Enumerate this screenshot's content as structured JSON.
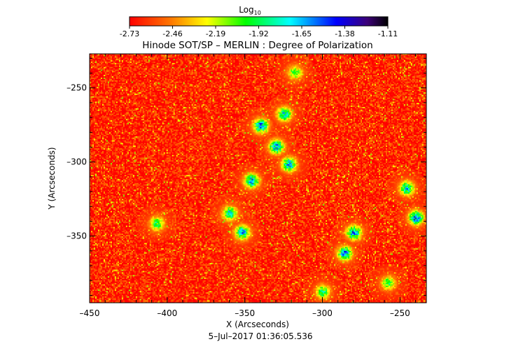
{
  "colorbar": {
    "title": "Log",
    "title_subscript": "10",
    "ticks": [
      "-2.73",
      "-2.46",
      "-2.19",
      "-1.92",
      "-1.65",
      "-1.38",
      "-1.11"
    ],
    "range": [
      -2.73,
      -1.11
    ],
    "colormap": "rainbow (red → orange → yellow → green → cyan → blue → black)"
  },
  "chart_data": {
    "type": "heatmap",
    "title": "Hinode SOT/SP – MERLIN : Degree of Polarization",
    "xlabel": "X (Arcseconds)",
    "ylabel": "Y (Arcseconds)",
    "xlim": [
      -450,
      -233
    ],
    "ylim": [
      -395,
      -227
    ],
    "x_ticks": [
      -450,
      -400,
      -350,
      -300,
      -250
    ],
    "y_ticks": [
      -250,
      -300,
      -350
    ],
    "x_tick_labels": [
      "–450",
      "–400",
      "–350",
      "–300",
      "–250"
    ],
    "y_tick_labels": [
      "–250",
      "–300",
      "–350"
    ],
    "background_level": -2.65,
    "features": [
      {
        "x": -340,
        "y": -276,
        "value": -1.38
      },
      {
        "x": -330,
        "y": -290,
        "value": -1.4
      },
      {
        "x": -325,
        "y": -268,
        "value": -1.55
      },
      {
        "x": -322,
        "y": -302,
        "value": -1.45
      },
      {
        "x": -346,
        "y": -313,
        "value": -1.4
      },
      {
        "x": -280,
        "y": -348,
        "value": -1.38
      },
      {
        "x": -286,
        "y": -362,
        "value": -1.42
      },
      {
        "x": -240,
        "y": -338,
        "value": -1.35
      },
      {
        "x": -246,
        "y": -318,
        "value": -1.55
      },
      {
        "x": -352,
        "y": -348,
        "value": -1.5
      },
      {
        "x": -360,
        "y": -335,
        "value": -1.6
      },
      {
        "x": -407,
        "y": -342,
        "value": -1.8
      },
      {
        "x": -300,
        "y": -388,
        "value": -1.75
      },
      {
        "x": -318,
        "y": -240,
        "value": -1.85
      },
      {
        "x": -258,
        "y": -382,
        "value": -1.85
      }
    ],
    "grid": false
  },
  "footer": {
    "timestamp": "5–Jul–2017 01:36:05.536"
  }
}
